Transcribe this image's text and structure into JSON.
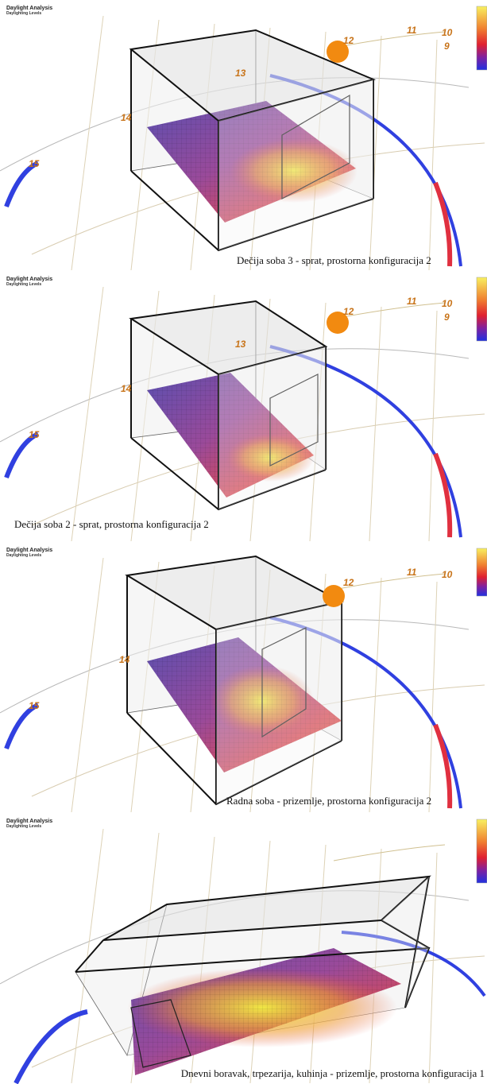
{
  "panels": [
    {
      "title": "Daylight Analysis",
      "subtitle": "Daylighting Levels",
      "hours": [
        "12",
        "11",
        "10",
        "9",
        "13",
        "14",
        "15"
      ],
      "caption": "Dečija soba 3 - sprat, prostorna konfiguracija 2"
    },
    {
      "title": "Daylight Analysis",
      "subtitle": "Daylighting Levels",
      "hours": [
        "12",
        "11",
        "10",
        "9",
        "13",
        "14",
        "15"
      ],
      "caption": "Dečija soba 2 - sprat, prostorna konfiguracija 2"
    },
    {
      "title": "Daylight Analysis",
      "subtitle": "Daylighting Levels",
      "hours": [
        "12",
        "11",
        "10",
        "14",
        "15"
      ],
      "caption": "Radna soba - prizemlje, prostorna konfiguracija 2"
    },
    {
      "title": "Daylight Analysis",
      "subtitle": "Daylighting Levels",
      "hours": [],
      "caption": "Dnevni boravak, trpezarija, kuhinja - prizemlje, prostorna konfiguracija 1"
    }
  ]
}
